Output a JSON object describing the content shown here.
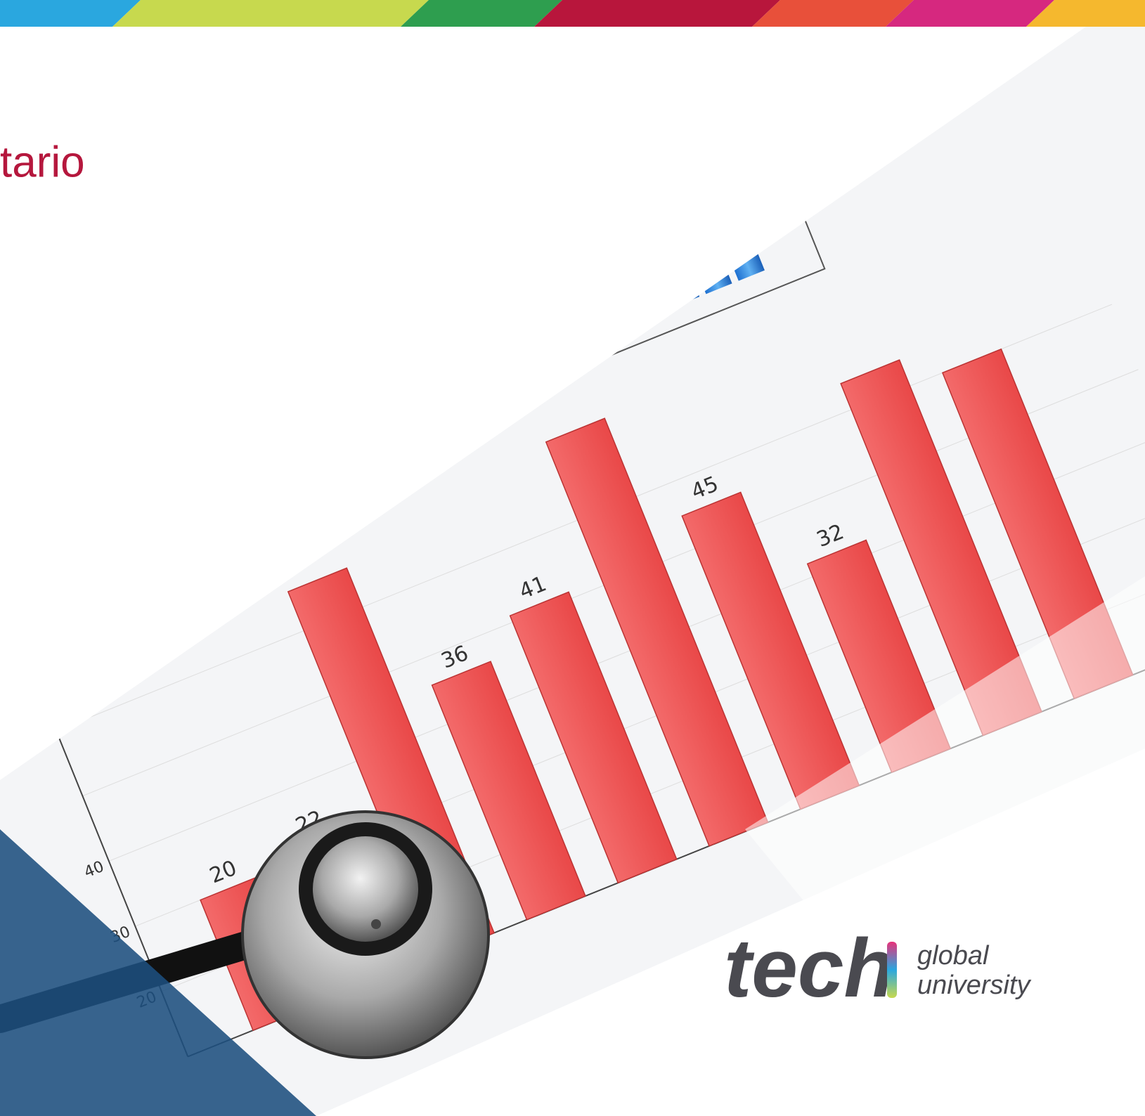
{
  "header": {
    "title": "tario"
  },
  "logo": {
    "wordmark": "tech",
    "tagline_1": "global",
    "tagline_2": "university"
  },
  "photo": {
    "bar_labels": [
      "20",
      "22",
      "36",
      "41",
      "45",
      "32"
    ],
    "axis_labels": [
      "40",
      "30",
      "20"
    ]
  }
}
